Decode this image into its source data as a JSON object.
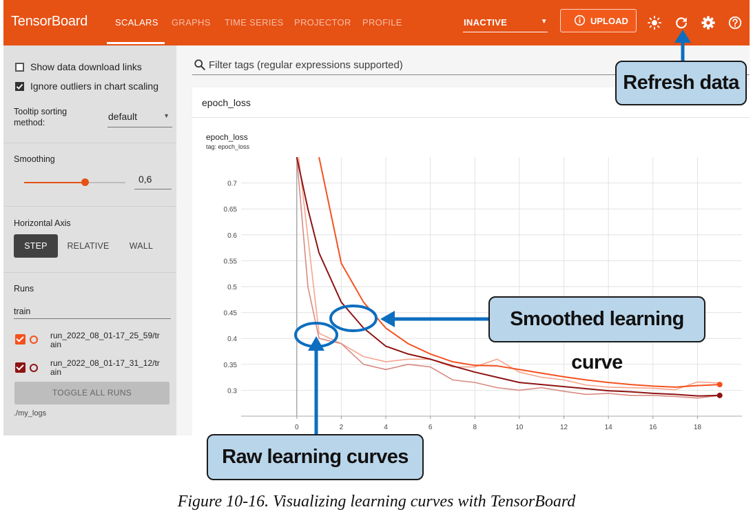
{
  "header": {
    "brand": "TensorBoard",
    "tabs": [
      {
        "label": "SCALARS",
        "active": true
      },
      {
        "label": "GRAPHS",
        "active": false
      },
      {
        "label": "TIME SERIES",
        "active": false
      },
      {
        "label": "PROJECTOR",
        "active": false
      },
      {
        "label": "PROFILE",
        "active": false
      }
    ],
    "status_select": "INACTIVE",
    "upload_label": "UPLOAD",
    "icons": [
      "brightness-icon",
      "refresh-icon",
      "gear-icon",
      "help-icon"
    ]
  },
  "sidebar": {
    "show_download_links": {
      "label": "Show data download links",
      "checked": false
    },
    "ignore_outliers": {
      "label": "Ignore outliers in chart scaling",
      "checked": true
    },
    "tooltip_sorting": {
      "label_line1": "Tooltip sorting",
      "label_line2": "method:",
      "value": "default"
    },
    "smoothing": {
      "label": "Smoothing",
      "value": "0,6",
      "fraction": 0.6
    },
    "horizontal_axis": {
      "label": "Horizontal Axis",
      "options": [
        {
          "label": "STEP",
          "active": true
        },
        {
          "label": "RELATIVE",
          "active": false
        },
        {
          "label": "WALL",
          "active": false
        }
      ]
    },
    "runs": {
      "label": "Runs",
      "filter_value": "train",
      "items": [
        {
          "name": "run_2022_08_01-17_25_59/train",
          "color": "#f4511e",
          "checked": true
        },
        {
          "name": "run_2022_08_01-17_31_12/train",
          "color": "#8e1313",
          "checked": true
        }
      ],
      "toggle_label": "TOGGLE ALL RUNS",
      "logdir": "./my_logs"
    }
  },
  "main": {
    "filter_placeholder": "Filter tags (regular expressions supported)",
    "card_title": "epoch_loss",
    "chart_title": "epoch_loss",
    "chart_tag": "tag: epoch_loss"
  },
  "chart_data": {
    "type": "line",
    "title": "epoch_loss",
    "subtitle": "tag: epoch_loss",
    "xlabel": "",
    "ylabel": "",
    "xlim": [
      -2.5,
      20
    ],
    "ylim": [
      0.25,
      0.75
    ],
    "x_ticks": [
      0,
      2,
      4,
      6,
      8,
      10,
      12,
      14,
      16,
      18
    ],
    "y_ticks": [
      0.3,
      0.35,
      0.4,
      0.45,
      0.5,
      0.55,
      0.6,
      0.65,
      0.7
    ],
    "grid": true,
    "series": [
      {
        "color": "#f4511e",
        "kind": "smoothed",
        "x": [
          0,
          1,
          2,
          3,
          4,
          5,
          6,
          7,
          8,
          9,
          10,
          11,
          12,
          13,
          14,
          15,
          16,
          17,
          18,
          19
        ],
        "y": [
          0.9,
          0.75,
          0.545,
          0.47,
          0.42,
          0.39,
          0.37,
          0.355,
          0.348,
          0.347,
          0.34,
          0.333,
          0.326,
          0.32,
          0.315,
          0.311,
          0.308,
          0.306,
          0.309,
          0.311
        ]
      },
      {
        "color": "#8e1313",
        "kind": "smoothed",
        "x": [
          0,
          0.5,
          1,
          2,
          3,
          4,
          5,
          6,
          7,
          8,
          9,
          10,
          11,
          12,
          13,
          14,
          15,
          16,
          17,
          18,
          19
        ],
        "y": [
          0.75,
          0.65,
          0.565,
          0.47,
          0.42,
          0.385,
          0.37,
          0.36,
          0.347,
          0.335,
          0.325,
          0.315,
          0.311,
          0.307,
          0.303,
          0.299,
          0.297,
          0.294,
          0.292,
          0.289,
          0.29
        ]
      },
      {
        "color": "#f6a48c",
        "kind": "raw",
        "x": [
          0,
          1,
          2,
          3,
          4,
          5,
          6,
          7,
          8,
          9,
          10,
          11,
          12,
          13,
          14,
          15,
          16,
          17,
          18,
          19
        ],
        "y": [
          0.78,
          0.41,
          0.39,
          0.365,
          0.355,
          0.36,
          0.36,
          0.345,
          0.345,
          0.36,
          0.335,
          0.325,
          0.32,
          0.31,
          0.306,
          0.305,
          0.304,
          0.301,
          0.316,
          0.314
        ]
      },
      {
        "color": "#d88a82",
        "kind": "raw",
        "x": [
          0,
          0.5,
          1,
          2,
          3,
          4,
          5,
          6,
          7,
          8,
          9,
          10,
          11,
          12,
          13,
          14,
          15,
          16,
          17,
          18,
          19
        ],
        "y": [
          0.75,
          0.5,
          0.4,
          0.39,
          0.35,
          0.34,
          0.35,
          0.345,
          0.32,
          0.315,
          0.305,
          0.3,
          0.305,
          0.298,
          0.292,
          0.294,
          0.29,
          0.29,
          0.288,
          0.285,
          0.29
        ]
      }
    ]
  },
  "callouts": {
    "refresh": "Refresh data",
    "smoothed": "Smoothed learning curve",
    "raw": "Raw learning curves"
  },
  "caption": "Figure 10-16. Visualizing learning curves with TensorBoard"
}
